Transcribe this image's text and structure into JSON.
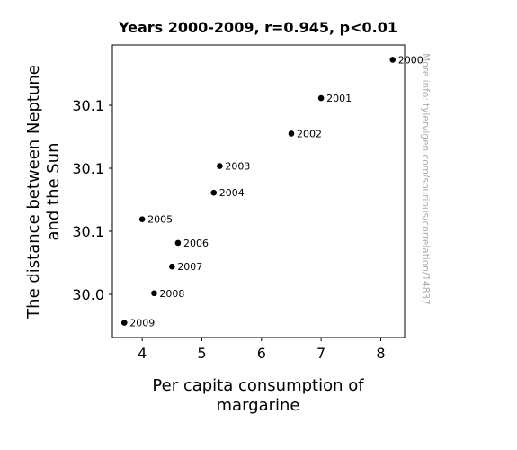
{
  "chart_data": {
    "type": "scatter",
    "title": "Years 2000-2009, r=0.945, p<0.01",
    "xlabel_lines": [
      "Per capita consumption of",
      "margarine"
    ],
    "ylabel_lines": [
      "The distance between Neptune",
      "and the Sun"
    ],
    "xlim": [
      3.5,
      8.4
    ],
    "x_ticks": [
      4,
      5,
      6,
      7,
      8
    ],
    "y_ticks_labels": [
      "30.1",
      "30.1",
      "30.1",
      "30.0"
    ],
    "points": [
      {
        "label": "2000",
        "x": 8.2,
        "y": 30.139
      },
      {
        "label": "2001",
        "x": 7.0,
        "y": 30.126
      },
      {
        "label": "2002",
        "x": 6.5,
        "y": 30.114
      },
      {
        "label": "2003",
        "x": 5.3,
        "y": 30.103
      },
      {
        "label": "2004",
        "x": 5.2,
        "y": 30.094
      },
      {
        "label": "2005",
        "x": 4.0,
        "y": 30.085
      },
      {
        "label": "2006",
        "x": 4.6,
        "y": 30.077
      },
      {
        "label": "2007",
        "x": 4.5,
        "y": 30.069
      },
      {
        "label": "2008",
        "x": 4.2,
        "y": 30.06
      },
      {
        "label": "2009",
        "x": 3.7,
        "y": 30.05
      }
    ],
    "marker_color": "#000000",
    "grid": false
  },
  "watermark": "More info: tylervigen.com/spurious/correlation/14837"
}
